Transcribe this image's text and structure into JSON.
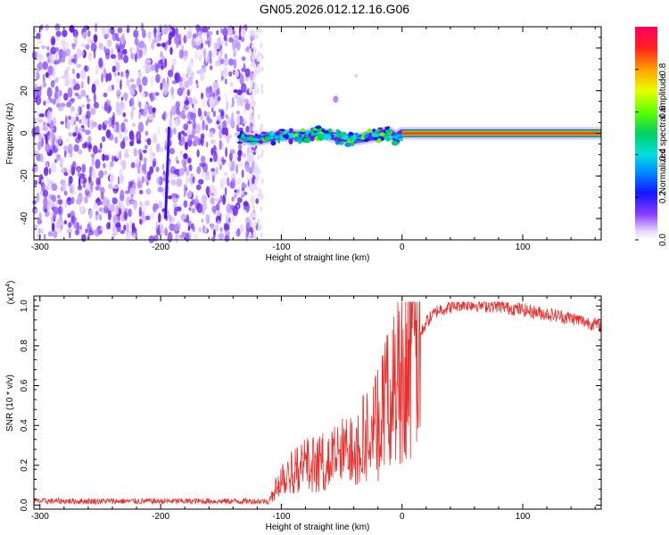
{
  "title": "GN05.2026.012.12.16.G06",
  "chart_data": [
    {
      "type": "heatmap",
      "name": "spectrogram",
      "xlabel": "Height of straight line (km)",
      "ylabel": "Frequency (Hz)",
      "xlim": [
        -305,
        165
      ],
      "ylim": [
        -50,
        50
      ],
      "xticks": [
        -300,
        -200,
        -100,
        0,
        100
      ],
      "xtick_labels": [
        "-300",
        "-200",
        "-100",
        "0",
        "100"
      ],
      "yticks": [
        -40,
        -20,
        0,
        20,
        40
      ],
      "ytick_labels": [
        "-40",
        "-20",
        "0",
        "20",
        "40"
      ],
      "noise_region_x": [
        -305,
        -120
      ],
      "signal_path": [
        {
          "x": -135,
          "y": -2
        },
        {
          "x": -120,
          "y": -3
        },
        {
          "x": -110,
          "y": -2
        },
        {
          "x": -100,
          "y": -1
        },
        {
          "x": -90,
          "y": -1
        },
        {
          "x": -80,
          "y": -1
        },
        {
          "x": -70,
          "y": 0
        },
        {
          "x": -60,
          "y": -1
        },
        {
          "x": -50,
          "y": -2
        },
        {
          "x": -40,
          "y": -3
        },
        {
          "x": -30,
          "y": -2
        },
        {
          "x": -20,
          "y": -1
        },
        {
          "x": -15,
          "y": 0
        },
        {
          "x": -10,
          "y": 0
        },
        {
          "x": -5,
          "y": -2
        },
        {
          "x": 0,
          "y": 0
        },
        {
          "x": 165,
          "y": 0
        }
      ],
      "colorbar": {
        "label": "Normalized spectral amplitude",
        "range": [
          0,
          1
        ],
        "ticks": [
          0.0,
          0.2,
          0.4,
          0.6,
          0.8
        ],
        "tick_labels": [
          "0.0",
          "0.2",
          "0.4",
          "0.6",
          "0.8"
        ]
      }
    },
    {
      "type": "line",
      "name": "snr",
      "xlabel": "Height of straight line (km)",
      "ylabel": "SNR (10 * v/v)",
      "exponent_label": "(x10",
      "exponent_power": "4",
      "exponent_close": ")",
      "xlim": [
        -305,
        165
      ],
      "ylim": [
        -0.02,
        1.05
      ],
      "xticks": [
        -300,
        -200,
        -100,
        0,
        100
      ],
      "xtick_labels": [
        "-300",
        "-200",
        "-100",
        "0",
        "100"
      ],
      "yticks": [
        0.0,
        0.2,
        0.4,
        0.6,
        0.8,
        1.0
      ],
      "ytick_labels": [
        "0.0",
        "0.2",
        "0.4",
        "0.6",
        "0.8",
        "1.0"
      ],
      "color": "#e8302e",
      "series": [
        {
          "name": "SNR",
          "x": [
            -305,
            -200,
            -110,
            -100,
            -80,
            -60,
            -40,
            -30,
            -20,
            -10,
            0,
            10,
            20,
            30,
            50,
            80,
            110,
            140,
            165
          ],
          "y": [
            0.02,
            0.02,
            0.02,
            0.15,
            0.2,
            0.22,
            0.3,
            0.35,
            0.4,
            0.55,
            0.7,
            0.78,
            0.92,
            0.98,
            1.01,
            1.0,
            0.97,
            0.94,
            0.9
          ]
        }
      ]
    }
  ]
}
